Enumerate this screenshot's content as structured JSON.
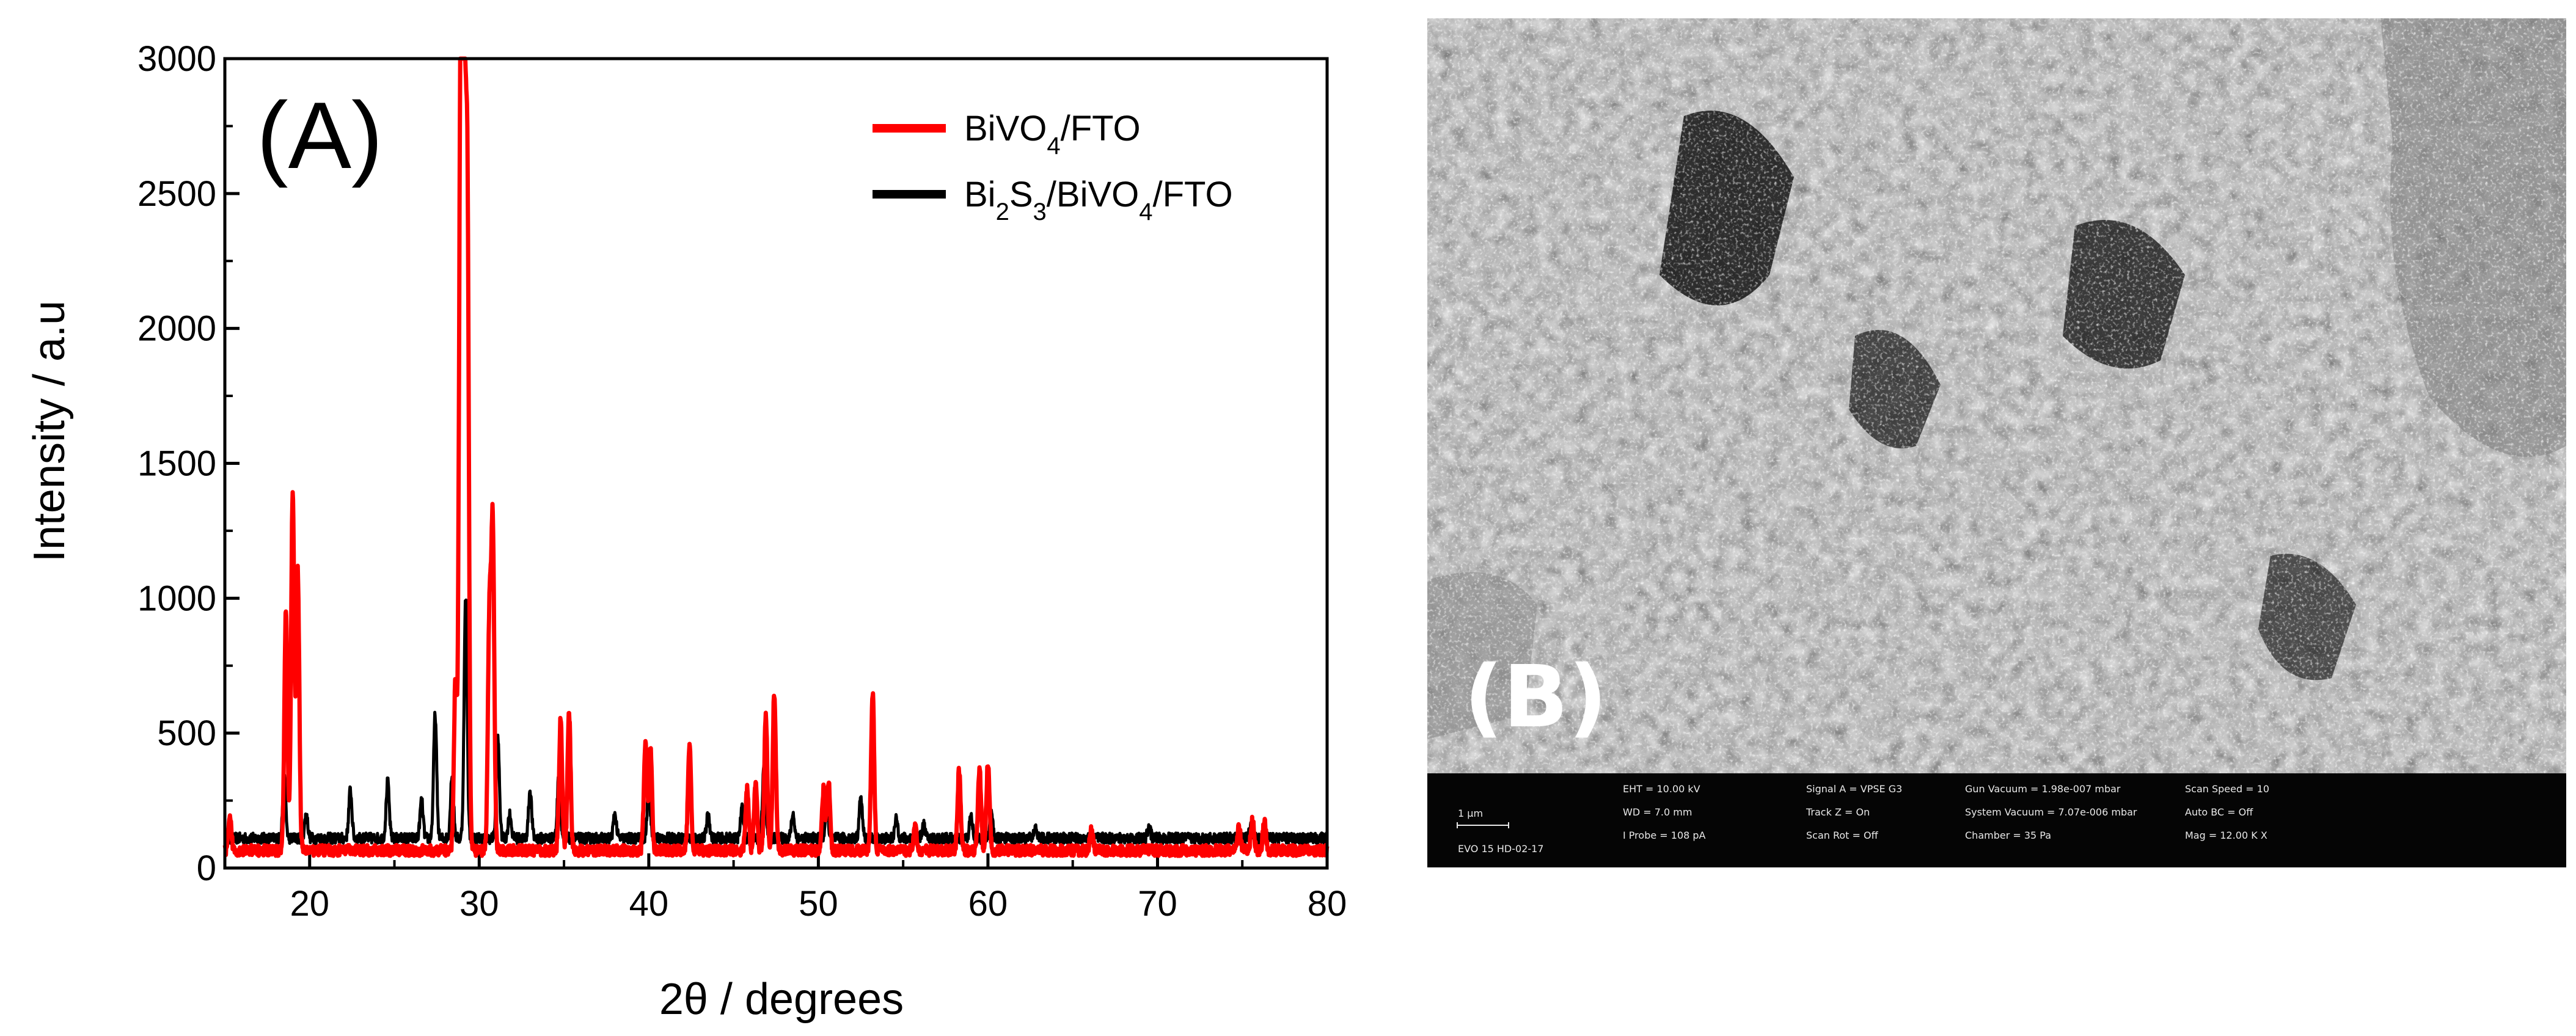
{
  "figure": {
    "panel_a_label": "(A)",
    "panel_b_label": "(B)"
  },
  "chart_data": {
    "type": "line",
    "xlabel": "2θ / degrees",
    "ylabel": "Intensity / a.u",
    "xlim": [
      15,
      80
    ],
    "ylim": [
      0,
      3000
    ],
    "xticks": [
      20,
      30,
      40,
      50,
      60,
      70,
      80
    ],
    "yticks": [
      0,
      500,
      1000,
      1500,
      2000,
      2500,
      3000
    ],
    "grid": false,
    "legend": "top-right",
    "series": [
      {
        "name": "BiVO4/FTO",
        "legend_html": "BiVO<tspan baseline-shift=\"sub\" font-size=\"40\">4</tspan>/FTO",
        "color": "#ff0000",
        "baseline": 65,
        "peaks": [
          [
            15.3,
            180
          ],
          [
            18.6,
            950
          ],
          [
            19.0,
            1390
          ],
          [
            19.3,
            1100
          ],
          [
            28.6,
            700
          ],
          [
            28.9,
            2950
          ],
          [
            29.1,
            3000
          ],
          [
            29.3,
            2500
          ],
          [
            30.6,
            900
          ],
          [
            30.8,
            1250
          ],
          [
            34.8,
            550
          ],
          [
            35.3,
            570
          ],
          [
            39.8,
            460
          ],
          [
            40.1,
            450
          ],
          [
            42.4,
            460
          ],
          [
            45.8,
            300
          ],
          [
            46.3,
            310
          ],
          [
            46.9,
            560
          ],
          [
            47.4,
            650
          ],
          [
            50.3,
            290
          ],
          [
            50.6,
            320
          ],
          [
            53.2,
            650
          ],
          [
            55.7,
            150
          ],
          [
            58.3,
            360
          ],
          [
            59.5,
            370
          ],
          [
            60.0,
            390
          ],
          [
            66.1,
            140
          ],
          [
            74.8,
            150
          ],
          [
            75.6,
            180
          ],
          [
            76.3,
            170
          ]
        ]
      },
      {
        "name": "Bi2S3/BiVO4/FTO",
        "legend_html": "Bi<tspan baseline-shift=\"sub\" font-size=\"40\">2</tspan>S<tspan baseline-shift=\"sub\" font-size=\"40\">3</tspan>/BiVO<tspan baseline-shift=\"sub\" font-size=\"40\">4</tspan>/FTO",
        "color": "#000000",
        "baseline": 110,
        "peaks": [
          [
            18.5,
            330
          ],
          [
            19.8,
            200
          ],
          [
            22.4,
            290
          ],
          [
            24.6,
            320
          ],
          [
            26.6,
            250
          ],
          [
            27.4,
            570
          ],
          [
            28.4,
            350
          ],
          [
            29.2,
            1000
          ],
          [
            31.1,
            480
          ],
          [
            31.8,
            200
          ],
          [
            33.0,
            290
          ],
          [
            34.7,
            350
          ],
          [
            38.0,
            200
          ],
          [
            40.0,
            300
          ],
          [
            43.5,
            200
          ],
          [
            45.5,
            220
          ],
          [
            46.8,
            400
          ],
          [
            48.5,
            200
          ],
          [
            50.5,
            220
          ],
          [
            52.5,
            260
          ],
          [
            54.6,
            180
          ],
          [
            56.2,
            160
          ],
          [
            59.0,
            190
          ],
          [
            60.2,
            200
          ],
          [
            62.8,
            150
          ],
          [
            69.5,
            150
          ],
          [
            75.5,
            150
          ]
        ]
      }
    ]
  },
  "sem": {
    "eht": "EHT = 10.00 kV",
    "wd": "WD = 7.0 mm",
    "iprobe": "I Probe = 108 pA",
    "signal": "Signal A = VPSE G3",
    "track": "Track Z = On",
    "scanrot": "Scan Rot = Off",
    "gunvac": "Gun Vacuum = 1.98e-007 mbar",
    "sysvac": "System Vacuum = 7.07e-006 mbar",
    "chamber": "Chamber = 35 Pa",
    "scanspeed": "Scan Speed = 10",
    "autobc": "Auto BC = Off",
    "mag": "Mag = 12.00 K X",
    "scale": "1 μm",
    "instrument": "EVO 15 HD-02-17"
  }
}
